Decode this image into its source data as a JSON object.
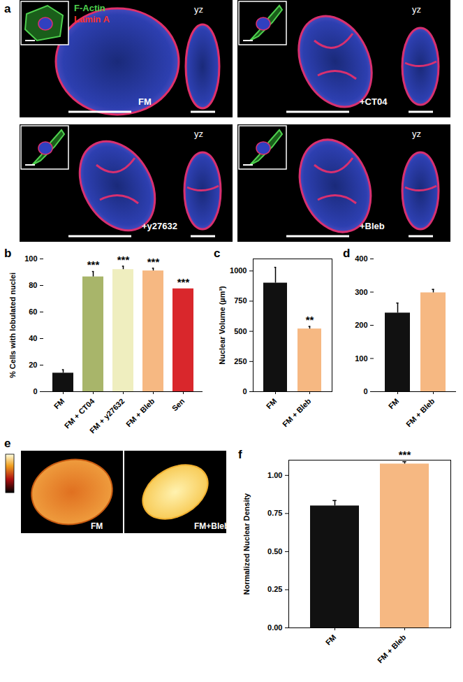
{
  "chart_data": [
    {
      "panel": "b",
      "type": "bar",
      "categories": [
        "FM",
        "FM + CT04",
        "FM + y27632",
        "FM + Bleb",
        "Sen"
      ],
      "values": [
        14,
        86.5,
        92,
        91,
        77.5
      ],
      "errors": [
        2.5,
        4,
        2.5,
        2,
        null
      ],
      "significance": [
        null,
        "***",
        "***",
        "***",
        "***"
      ],
      "colors": [
        "#111111",
        "#a8b56a",
        "#efeebf",
        "#f6b882",
        "#d9272c"
      ],
      "ylabel": "% Cells with lobulated nuclei",
      "ylim": [
        0,
        100
      ],
      "yticks": [
        0,
        20,
        40,
        60,
        80,
        100
      ]
    },
    {
      "panel": "c",
      "type": "bar",
      "categories": [
        "FM",
        "FM + Bleb"
      ],
      "values": [
        900,
        520
      ],
      "errors": [
        130,
        20
      ],
      "significance": [
        null,
        "**"
      ],
      "colors": [
        "#111111",
        "#f6b882"
      ],
      "ylabel": "Nuclear Volume (µm³)",
      "ylim": [
        0,
        1100
      ],
      "yticks": [
        0,
        250,
        500,
        750,
        1000
      ]
    },
    {
      "panel": "d",
      "type": "bar",
      "categories": [
        "FM",
        "FM + Bleb"
      ],
      "values": [
        237,
        298
      ],
      "errors": [
        30,
        10
      ],
      "significance": [
        null,
        null
      ],
      "colors": [
        "#111111",
        "#f6b882"
      ],
      "ylim": [
        0,
        400
      ],
      "yticks": [
        0,
        100,
        200,
        300,
        400
      ]
    },
    {
      "panel": "f",
      "type": "bar",
      "categories": [
        "FM",
        "FM + Bleb"
      ],
      "values": [
        0.8,
        1.075
      ],
      "errors": [
        0.035,
        0.015
      ],
      "significance": [
        null,
        "***"
      ],
      "colors": [
        "#111111",
        "#f6b882"
      ],
      "ylabel": "Normalized Nuclear Density",
      "ylim": [
        0,
        1.1
      ],
      "yticks": [
        {
          "value": 0,
          "label": "0.00"
        },
        {
          "value": 0.25,
          "label": "0.25"
        },
        {
          "value": 0.5,
          "label": "0.50"
        },
        {
          "value": 0.75,
          "label": "0.75"
        },
        {
          "value": 1,
          "label": "1.00"
        }
      ]
    }
  ],
  "images": {
    "panel": "a",
    "stain_labels": [
      "F-Actin",
      "Lamin A"
    ],
    "view_label": "yz",
    "conditions": [
      "FM",
      "+CT04",
      "+y27632",
      "+Bleb"
    ]
  },
  "density_images": {
    "panel": "e",
    "conditions": [
      "FM",
      "FM+Bleb"
    ]
  }
}
